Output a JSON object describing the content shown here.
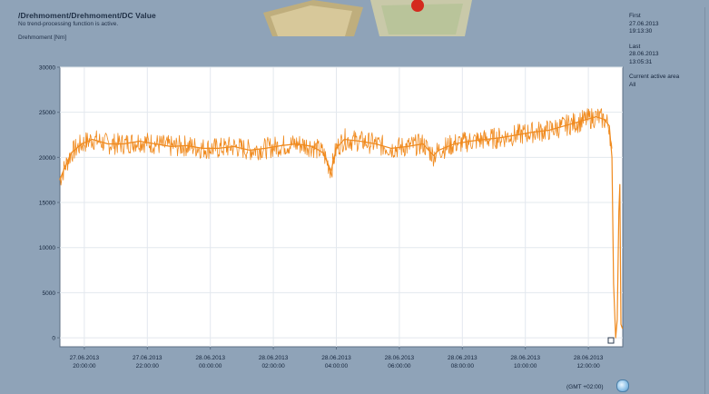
{
  "header": {
    "title": "/Drehmoment/Drehmoment/DC Value",
    "subtitle": "No trend-processing function is active.",
    "ylabel": "Drehmoment [Nm]"
  },
  "sidebar": {
    "first_label": "First",
    "first_date": "27.06.2013",
    "first_time": "19:13:30",
    "last_label": "Last",
    "last_date": "28.06.2013",
    "last_time": "13:05:31",
    "area_label": "Current active area",
    "area_value": "All"
  },
  "footer": {
    "timezone": "(GMT +02:00)"
  },
  "colors": {
    "series": "#f08a1e",
    "plot_bg": "#ffffff",
    "grid": "#e3e8ee",
    "frame_bg": "#8fa3b8"
  },
  "icons": {
    "logo": "machine-logo",
    "timezone": "globe-icon"
  },
  "chart_data": {
    "type": "line",
    "title": "/Drehmoment/Drehmoment/DC Value",
    "ylabel": "Drehmoment [Nm]",
    "ylim": [
      -1000,
      30000
    ],
    "yticks": [
      0,
      5000,
      10000,
      15000,
      20000,
      25000,
      30000
    ],
    "xlim": [
      "27.06.2013 19:13:30",
      "28.06.2013 13:05:31"
    ],
    "xticks": [
      {
        "date": "27.06.2013",
        "time": "20:00:00"
      },
      {
        "date": "27.06.2013",
        "time": "22:00:00"
      },
      {
        "date": "28.06.2013",
        "time": "00:00:00"
      },
      {
        "date": "28.06.2013",
        "time": "02:00:00"
      },
      {
        "date": "28.06.2013",
        "time": "04:00:00"
      },
      {
        "date": "28.06.2013",
        "time": "06:00:00"
      },
      {
        "date": "28.06.2013",
        "time": "08:00:00"
      },
      {
        "date": "28.06.2013",
        "time": "10:00:00"
      },
      {
        "date": "28.06.2013",
        "time": "12:00:00"
      }
    ],
    "grid": true,
    "series": [
      {
        "x": [
          "27.06.2013 19:13",
          "27.06.2013 19:20",
          "27.06.2013 19:35",
          "27.06.2013 19:55",
          "27.06.2013 20:15",
          "27.06.2013 20:45",
          "27.06.2013 21:15",
          "27.06.2013 21:45",
          "27.06.2013 22:15",
          "27.06.2013 22:45",
          "27.06.2013 23:15",
          "27.06.2013 23:45",
          "28.06.2013 00:15",
          "28.06.2013 00:45",
          "28.06.2013 01:15",
          "28.06.2013 01:45",
          "28.06.2013 02:15",
          "28.06.2013 02:45",
          "28.06.2013 03:15",
          "28.06.2013 03:35",
          "28.06.2013 03:50",
          "28.06.2013 04:00",
          "28.06.2013 04:15",
          "28.06.2013 04:45",
          "28.06.2013 05:15",
          "28.06.2013 05:45",
          "28.06.2013 06:15",
          "28.06.2013 06:45",
          "28.06.2013 07:05",
          "28.06.2013 07:15",
          "28.06.2013 07:45",
          "28.06.2013 08:15",
          "28.06.2013 08:45",
          "28.06.2013 09:15",
          "28.06.2013 09:45",
          "28.06.2013 10:15",
          "28.06.2013 10:45",
          "28.06.2013 11:15",
          "28.06.2013 11:45",
          "28.06.2013 12:15",
          "28.06.2013 12:30",
          "28.06.2013 12:40",
          "28.06.2013 12:45",
          "28.06.2013 12:48",
          "28.06.2013 12:52",
          "28.06.2013 12:55",
          "28.06.2013 12:58",
          "28.06.2013 13:00",
          "28.06.2013 13:02",
          "28.06.2013 13:05"
        ],
        "values": [
          17500,
          18500,
          20500,
          21500,
          22000,
          21500,
          21500,
          21800,
          21500,
          21200,
          21300,
          21000,
          21000,
          21200,
          20800,
          21000,
          21300,
          21500,
          21200,
          20500,
          18500,
          21000,
          22000,
          21800,
          21500,
          21000,
          21200,
          21500,
          20200,
          20800,
          21500,
          21800,
          22000,
          22200,
          22500,
          22800,
          23000,
          23500,
          24000,
          24500,
          24200,
          23500,
          20000,
          6000,
          0,
          2000,
          14000,
          17000,
          1500,
          1000
        ]
      }
    ]
  }
}
